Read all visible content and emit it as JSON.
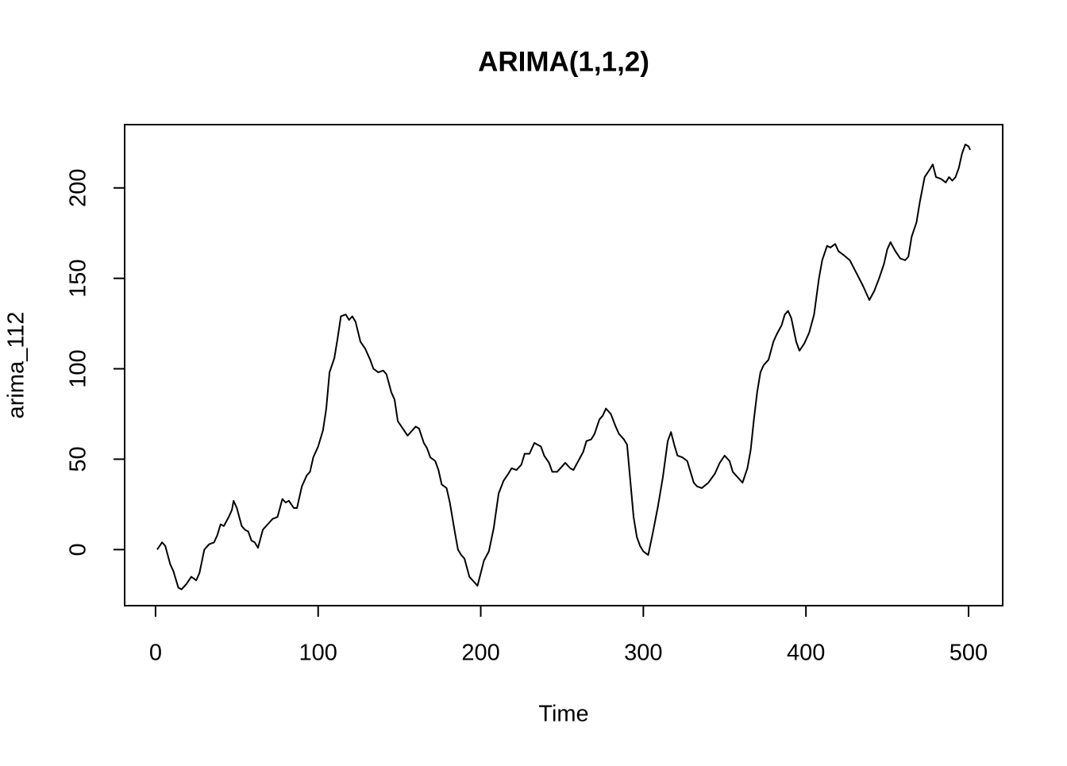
{
  "chart_data": {
    "type": "line",
    "title": "ARIMA(1,1,2)",
    "x_label": "Time",
    "y_label": "arima_112",
    "xlim": [
      -19,
      521
    ],
    "ylim": [
      -31,
      235
    ],
    "xticks": [
      0,
      100,
      200,
      300,
      400,
      500
    ],
    "yticks": [
      0,
      50,
      100,
      150,
      200
    ],
    "color": "#000000",
    "x": [
      1,
      4,
      6,
      9,
      11,
      14,
      16,
      19,
      22,
      25,
      27,
      30,
      33,
      36,
      38,
      40,
      42,
      45,
      47,
      48,
      50,
      53,
      55,
      57,
      59,
      61,
      63,
      66,
      69,
      72,
      75,
      78,
      80,
      82,
      85,
      87,
      90,
      93,
      95,
      97,
      100,
      103,
      105,
      107,
      110,
      112,
      114,
      117,
      119,
      121,
      123,
      126,
      129,
      132,
      134,
      137,
      140,
      142,
      145,
      147,
      149,
      152,
      155,
      157,
      160,
      162,
      165,
      167,
      169,
      172,
      174,
      176,
      179,
      181,
      184,
      186,
      188,
      190,
      193,
      196,
      198,
      200,
      202,
      205,
      208,
      211,
      214,
      217,
      219,
      222,
      225,
      227,
      230,
      233,
      235,
      237,
      239,
      242,
      244,
      247,
      250,
      252,
      255,
      257,
      260,
      263,
      265,
      268,
      270,
      273,
      275,
      277,
      280,
      283,
      285,
      288,
      290,
      292,
      294,
      296,
      298,
      300,
      303,
      306,
      309,
      312,
      315,
      317,
      319,
      321,
      324,
      327,
      329,
      331,
      333,
      336,
      340,
      344,
      347,
      350,
      353,
      355,
      358,
      361,
      364,
      366,
      368,
      370,
      372,
      374,
      377,
      380,
      382,
      385,
      387,
      389,
      391,
      394,
      396,
      399,
      402,
      405,
      408,
      410,
      413,
      415,
      418,
      420,
      423,
      427,
      431,
      435,
      439,
      442,
      445,
      448,
      450,
      452,
      455,
      458,
      461,
      463,
      465,
      468,
      470,
      473,
      476,
      478,
      480,
      483,
      486,
      488,
      490,
      492,
      494,
      496,
      498,
      500,
      501
    ],
    "values": [
      0,
      4,
      2,
      -8,
      -12,
      -21,
      -22,
      -19,
      -15,
      -17,
      -13,
      0,
      3,
      4,
      8,
      14,
      13,
      18,
      22,
      27,
      23,
      13,
      11,
      10,
      5,
      4,
      1,
      11,
      14,
      17,
      18,
      28,
      26,
      27,
      23,
      23,
      35,
      41,
      43,
      51,
      57,
      66,
      78,
      98,
      106,
      117,
      129,
      130,
      127,
      129,
      126,
      115,
      111,
      105,
      100,
      98,
      99,
      97,
      87,
      83,
      71,
      67,
      63,
      65,
      68,
      67,
      59,
      56,
      51,
      49,
      44,
      36,
      34,
      26,
      10,
      0,
      -3,
      -5,
      -15,
      -18,
      -20,
      -13,
      -6,
      -1,
      12,
      31,
      38,
      42,
      45,
      44,
      47,
      53,
      53,
      59,
      58,
      57,
      52,
      48,
      43,
      43,
      46,
      48,
      45,
      44,
      49,
      54,
      60,
      61,
      64,
      72,
      74,
      78,
      75,
      68,
      64,
      61,
      58,
      38,
      18,
      7,
      2,
      -1,
      -3,
      10,
      24,
      40,
      60,
      65,
      58,
      52,
      51,
      49,
      43,
      37,
      35,
      34,
      37,
      42,
      48,
      52,
      49,
      43,
      40,
      37,
      45,
      55,
      72,
      87,
      98,
      102,
      105,
      115,
      119,
      124,
      130,
      132,
      128,
      115,
      110,
      114,
      120,
      130,
      150,
      160,
      168,
      167,
      169,
      165,
      163,
      160,
      153,
      146,
      138,
      143,
      150,
      158,
      166,
      170,
      165,
      161,
      160,
      162,
      173,
      181,
      192,
      206,
      210,
      213,
      206,
      205,
      203,
      206,
      204,
      206,
      211,
      219,
      224,
      223,
      221
    ]
  }
}
